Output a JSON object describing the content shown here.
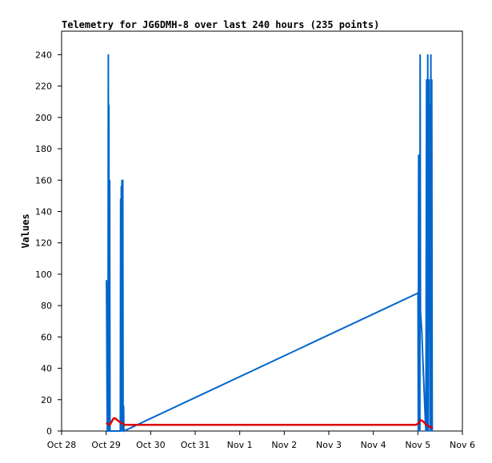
{
  "chart_data": {
    "type": "line",
    "title": "Telemetry for JG6DMH-8 over last 240 hours (235 points)",
    "xlabel": "",
    "ylabel": "Values",
    "x_ticks": [
      "Oct 28",
      "Oct 29",
      "Oct 30",
      "Oct 31",
      "Nov 1",
      "Nov 2",
      "Nov 3",
      "Nov 4",
      "Nov 5",
      "Nov 6"
    ],
    "y_ticks": [
      0,
      20,
      40,
      60,
      80,
      100,
      120,
      140,
      160,
      180,
      200,
      220,
      240
    ],
    "xlim": [
      "2024-10-28T00:00",
      "2024-11-06T00:00"
    ],
    "ylim": [
      0,
      255
    ],
    "grid": false,
    "legend": "none",
    "series": [
      {
        "color": "#0066cc",
        "style": "spiky",
        "points": [
          [
            "2024-10-29T00:10",
            96
          ],
          [
            "2024-10-29T00:20",
            72
          ],
          [
            "2024-10-29T00:30",
            24
          ],
          [
            "2024-10-29T00:40",
            0
          ],
          [
            "2024-10-29T01:00",
            0
          ],
          [
            "2024-10-29T01:10",
            240
          ],
          [
            "2024-10-29T01:20",
            0
          ],
          [
            "2024-10-29T01:30",
            208
          ],
          [
            "2024-10-29T01:40",
            0
          ],
          [
            "2024-10-29T01:55",
            160
          ],
          [
            "2024-10-29T02:05",
            0
          ],
          [
            "2024-10-29T07:40",
            0
          ],
          [
            "2024-10-29T07:50",
            148
          ],
          [
            "2024-10-29T08:00",
            0
          ],
          [
            "2024-10-29T08:10",
            156
          ],
          [
            "2024-10-29T08:20",
            0
          ],
          [
            "2024-10-29T08:30",
            160
          ],
          [
            "2024-10-29T08:40",
            120
          ],
          [
            "2024-10-29T08:50",
            0
          ],
          [
            "2024-10-29T09:00",
            160
          ],
          [
            "2024-10-29T09:10",
            0
          ],
          [
            "2024-10-29T09:25",
            16
          ],
          [
            "2024-10-29T09:35",
            0
          ],
          [
            "2024-11-05T00:05",
            88
          ],
          [
            "2024-11-05T00:15",
            0
          ],
          [
            "2024-11-05T00:25",
            176
          ],
          [
            "2024-11-05T00:35",
            0
          ],
          [
            "2024-11-05T00:45",
            176
          ],
          [
            "2024-11-05T00:55",
            160
          ],
          [
            "2024-11-05T01:05",
            0
          ],
          [
            "2024-11-05T01:15",
            240
          ],
          [
            "2024-11-05T01:25",
            76
          ],
          [
            "2024-11-05T02:05",
            64
          ],
          [
            "2024-11-05T02:45",
            44
          ],
          [
            "2024-11-05T03:25",
            24
          ],
          [
            "2024-11-05T04:00",
            8
          ],
          [
            "2024-11-05T04:20",
            0
          ],
          [
            "2024-11-05T04:40",
            224
          ],
          [
            "2024-11-05T05:00",
            0
          ],
          [
            "2024-11-05T05:20",
            240
          ],
          [
            "2024-11-05T05:40",
            0
          ],
          [
            "2024-11-05T06:00",
            224
          ],
          [
            "2024-11-05T06:15",
            64
          ],
          [
            "2024-11-05T06:30",
            208
          ],
          [
            "2024-11-05T06:45",
            0
          ],
          [
            "2024-11-05T07:00",
            240
          ],
          [
            "2024-11-05T07:15",
            0
          ],
          [
            "2024-11-05T07:30",
            224
          ],
          [
            "2024-11-05T07:45",
            0
          ]
        ]
      },
      {
        "color": "#dd0000",
        "style": "line",
        "points": [
          [
            "2024-10-29T00:10",
            5
          ],
          [
            "2024-10-29T01:00",
            4.5
          ],
          [
            "2024-10-29T02:00",
            4
          ],
          [
            "2024-10-29T03:00",
            6
          ],
          [
            "2024-10-29T04:00",
            8
          ],
          [
            "2024-10-29T05:00",
            8
          ],
          [
            "2024-10-29T06:00",
            7
          ],
          [
            "2024-10-29T07:00",
            6
          ],
          [
            "2024-10-29T08:30",
            5
          ],
          [
            "2024-10-29T10:00",
            4
          ],
          [
            "2024-10-29T14:00",
            4
          ],
          [
            "2024-11-04T23:00",
            4
          ],
          [
            "2024-11-05T00:30",
            5
          ],
          [
            "2024-11-05T01:30",
            7
          ],
          [
            "2024-11-05T03:00",
            6
          ],
          [
            "2024-11-05T04:30",
            4
          ],
          [
            "2024-11-05T06:00",
            3
          ],
          [
            "2024-11-05T07:45",
            2
          ]
        ]
      }
    ]
  }
}
